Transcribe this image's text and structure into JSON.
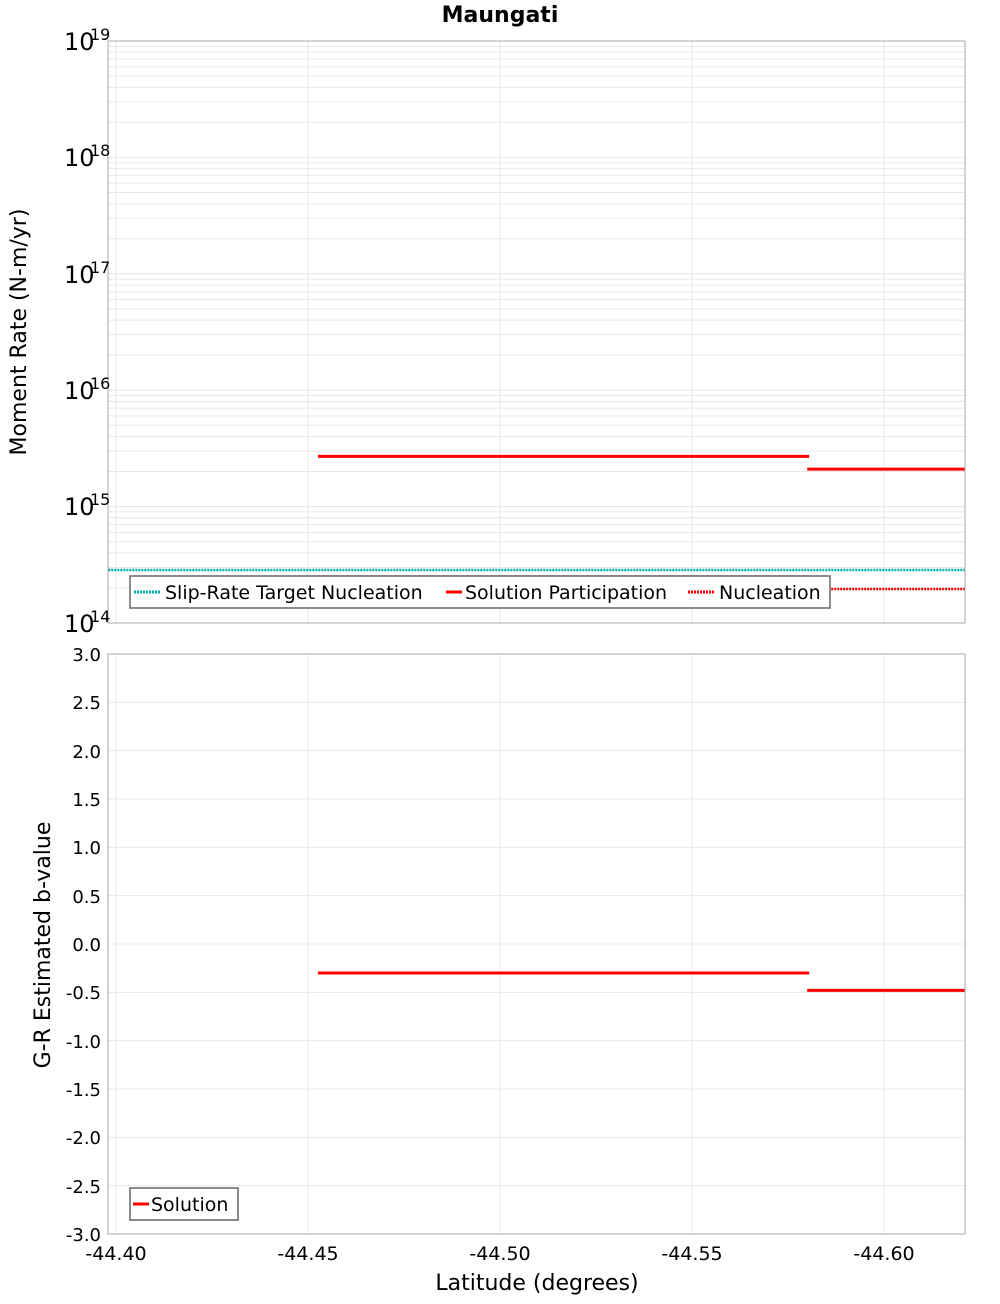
{
  "title": "Maungati",
  "x_axis": {
    "label": "Latitude (degrees)",
    "ticks": [
      "-44.40",
      "-44.45",
      "-44.50",
      "-44.55",
      "-44.60"
    ],
    "tick_values": [
      -44.4,
      -44.45,
      -44.5,
      -44.55,
      -44.6
    ],
    "range": [
      -44.398,
      -44.621
    ]
  },
  "top_plot": {
    "ylabel": "Moment Rate (N-m/yr)",
    "yscale": "log",
    "ylim": [
      100000000000000.0,
      1e+19
    ],
    "tick_base": "10",
    "tick_exponents": [
      "19",
      "18",
      "17",
      "16",
      "15",
      "14"
    ],
    "legend": [
      {
        "label": "Slip-Rate Target Nucleation",
        "color": "#00b0b0",
        "style": "dotted"
      },
      {
        "label": "Solution Participation",
        "color": "#ff0000",
        "style": "solid"
      },
      {
        "label": "Nucleation",
        "color": "#ff0000",
        "style": "dotted"
      }
    ]
  },
  "bottom_plot": {
    "ylabel": "G-R Estimated b-value",
    "ylim": [
      -3.0,
      3.0
    ],
    "ticks": [
      "3.0",
      "2.5",
      "2.0",
      "1.5",
      "1.0",
      "0.5",
      "0.0",
      "-0.5",
      "-1.0",
      "-1.5",
      "-2.0",
      "-2.5",
      "-3.0"
    ],
    "legend": [
      {
        "label": "Solution",
        "color": "#ff0000",
        "style": "solid"
      }
    ]
  },
  "chart_data": [
    {
      "type": "line",
      "title": "Maungati",
      "xlabel": "Latitude (degrees)",
      "ylabel": "Moment Rate (N-m/yr)",
      "yscale": "log",
      "xlim": [
        -44.398,
        -44.621
      ],
      "ylim": [
        100000000000000.0,
        1e+19
      ],
      "grid": true,
      "legend_position": "lower-left inside",
      "series": [
        {
          "name": "Slip-Rate Target Nucleation",
          "color": "#00b0b0",
          "style": "dotted",
          "segments": [
            {
              "x": [
                -44.398,
                -44.621
              ],
              "y": [
                285000000000000.0,
                285000000000000.0
              ]
            }
          ]
        },
        {
          "name": "Solution Participation",
          "color": "#ff0000",
          "style": "solid",
          "segments": [
            {
              "x": [
                -44.4526,
                -44.5805
              ],
              "y": [
                2700000000000000.0,
                2700000000000000.0
              ]
            },
            {
              "x": [
                -44.58,
                -44.621
              ],
              "y": [
                2100000000000000.0,
                2100000000000000.0
              ]
            }
          ]
        },
        {
          "name": "Nucleation",
          "color": "#ff0000",
          "style": "dotted",
          "segments": [
            {
              "x": [
                -44.4526,
                -44.5805
              ],
              "y": [
                250000000000000.0,
                250000000000000.0
              ]
            },
            {
              "x": [
                -44.58,
                -44.621
              ],
              "y": [
                196000000000000.0,
                196000000000000.0
              ]
            }
          ]
        }
      ]
    },
    {
      "type": "line",
      "title": "",
      "xlabel": "Latitude (degrees)",
      "ylabel": "G-R Estimated b-value",
      "xlim": [
        -44.398,
        -44.621
      ],
      "ylim": [
        -3.0,
        3.0
      ],
      "grid": true,
      "legend_position": "lower-left inside",
      "series": [
        {
          "name": "Solution",
          "color": "#ff0000",
          "style": "solid",
          "segments": [
            {
              "x": [
                -44.4526,
                -44.5805
              ],
              "y": [
                -0.3,
                -0.3
              ]
            },
            {
              "x": [
                -44.58,
                -44.621
              ],
              "y": [
                -0.48,
                -0.48
              ]
            }
          ]
        }
      ]
    }
  ]
}
